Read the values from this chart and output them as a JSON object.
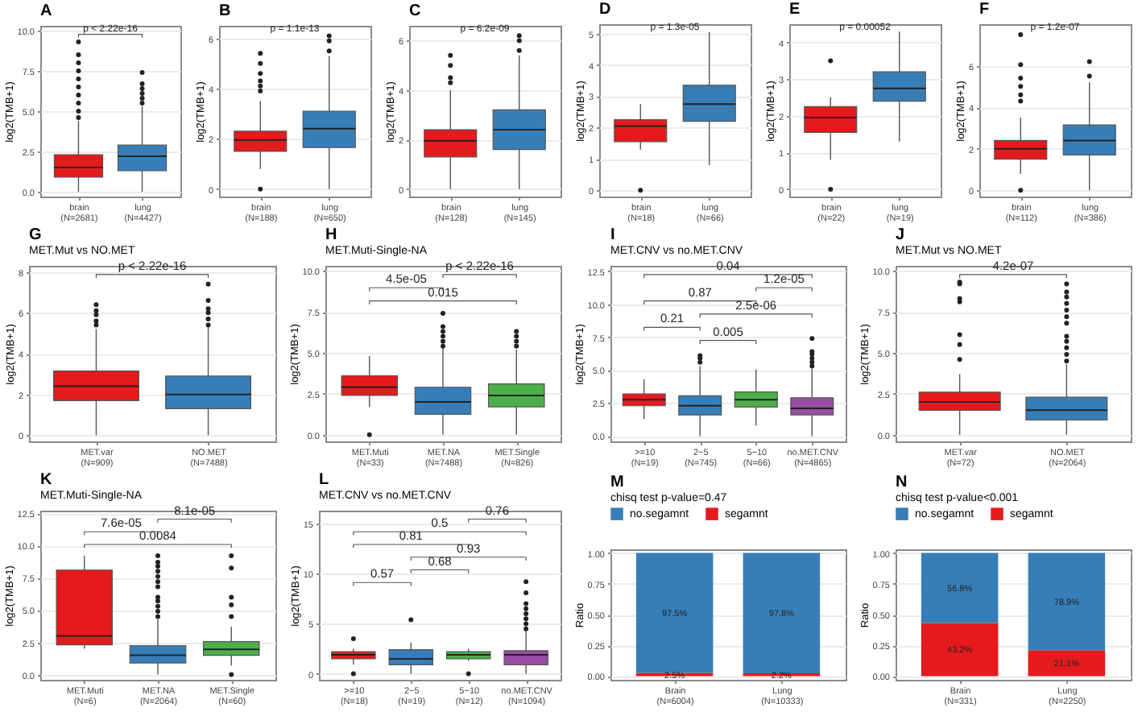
{
  "chart_data": [
    {
      "type": "box",
      "title": "A",
      "ylabel": "log2(TMB+1)",
      "categories": [
        "brain\n(N=2681)",
        "lung\n(N=4427)"
      ],
      "colors": [
        "#e41a1c",
        "#377eb8"
      ],
      "ylim": [
        -0.3,
        10.3
      ],
      "yticks": [
        {
          "value": 0,
          "label": "0.0"
        },
        2.5,
        {
          "value": 5,
          "label": "5.0"
        },
        7.5,
        {
          "value": 10,
          "label": "10.0"
        }
      ],
      "grid": true,
      "annotations": [
        "p < 2.22e-16"
      ],
      "boxes": [
        {
          "low": 0,
          "q1": 0.9,
          "median": 1.5,
          "q3": 2.3,
          "high": 4.4,
          "outliers": [
            4.6,
            5,
            5.5,
            6,
            6.5,
            7,
            7.5,
            8,
            8.5,
            9.3
          ]
        },
        {
          "low": 0,
          "q1": 1.3,
          "median": 2.2,
          "q3": 2.9,
          "high": 5.3,
          "outliers": [
            5.5,
            5.8,
            6.1,
            6.4,
            6.7,
            7.4
          ]
        }
      ]
    },
    {
      "type": "box",
      "title": "B",
      "ylabel": "log2(TMB+1)",
      "categories": [
        "brain\n(N=188)",
        "lung\n(N=650)"
      ],
      "colors": [
        "#e41a1c",
        "#377eb8"
      ],
      "ylim": [
        -0.3,
        6.5
      ],
      "yticks": [
        0,
        2,
        4,
        6
      ],
      "grid": true,
      "annotations": [
        "p = 1.1e-13"
      ],
      "boxes": [
        {
          "low": 0.8,
          "q1": 1.5,
          "median": 1.95,
          "q3": 2.3,
          "high": 3.5,
          "outliers": [
            0,
            3.9,
            4.1,
            4.3,
            4.6,
            5,
            5.4
          ]
        },
        {
          "low": 0,
          "q1": 1.65,
          "median": 2.4,
          "q3": 3.1,
          "high": 5.3,
          "outliers": [
            5.5,
            5.9,
            6.1
          ]
        }
      ]
    },
    {
      "type": "box",
      "title": "C",
      "ylabel": "log2(TMB+1)",
      "categories": [
        "brain\n(N=128)",
        "lung\n(N=145)"
      ],
      "colors": [
        "#e41a1c",
        "#377eb8"
      ],
      "ylim": [
        -0.3,
        6.6
      ],
      "yticks": [
        0,
        2,
        4,
        6
      ],
      "grid": true,
      "annotations": [
        "p = 6.2e-09"
      ],
      "boxes": [
        {
          "low": 0,
          "q1": 1.3,
          "median": 1.95,
          "q3": 2.4,
          "high": 4.0,
          "outliers": [
            4.3,
            4.5,
            5,
            5.4
          ]
        },
        {
          "low": 0,
          "q1": 1.6,
          "median": 2.4,
          "q3": 3.2,
          "high": 5.4,
          "outliers": [
            5.6,
            6,
            6.2
          ]
        }
      ]
    },
    {
      "type": "box",
      "title": "D",
      "ylabel": "log2(TMB+1)",
      "categories": [
        "brain\n(N=18)",
        "lung\n(N=66)"
      ],
      "colors": [
        "#e41a1c",
        "#377eb8"
      ],
      "ylim": [
        -0.2,
        5.3
      ],
      "yticks": [
        0,
        1,
        2,
        3,
        4,
        5
      ],
      "grid": true,
      "annotations": [
        "p = 1.3e-05"
      ],
      "boxes": [
        {
          "low": 1.3,
          "q1": 1.55,
          "median": 2.05,
          "q3": 2.25,
          "high": 2.75,
          "outliers": [
            0
          ]
        },
        {
          "low": 0.8,
          "q1": 2.2,
          "median": 2.75,
          "q3": 3.35,
          "high": 5.05
        }
      ]
    },
    {
      "type": "box",
      "title": "E",
      "ylabel": "log2(TMB+1)",
      "categories": [
        "brain\n(N=22)",
        "lung\n(N=19)"
      ],
      "colors": [
        "#e41a1c",
        "#377eb8"
      ],
      "ylim": [
        -0.2,
        4.5
      ],
      "yticks": [
        0,
        1,
        2,
        3,
        4
      ],
      "grid": true,
      "annotations": [
        "p = 0.00052"
      ],
      "boxes": [
        {
          "low": 0.8,
          "q1": 1.55,
          "median": 1.95,
          "q3": 2.25,
          "high": 2.5,
          "outliers": [
            0,
            3.5
          ]
        },
        {
          "low": 1.3,
          "q1": 2.4,
          "median": 2.75,
          "q3": 3.2,
          "high": 4.3
        }
      ]
    },
    {
      "type": "box",
      "title": "F",
      "ylabel": "log2(TMB+1)",
      "categories": [
        "brain\n(N=112)",
        "lung\n(N=386)"
      ],
      "colors": [
        "#e41a1c",
        "#377eb8"
      ],
      "ylim": [
        -0.3,
        8.0
      ],
      "yticks": [
        0,
        2,
        4,
        6
      ],
      "grid": true,
      "annotations": [
        "p = 1.2e-07"
      ],
      "boxes": [
        {
          "low": 0.8,
          "q1": 1.5,
          "median": 2.0,
          "q3": 2.4,
          "high": 3.5,
          "outliers": [
            0,
            4.3,
            4.6,
            5,
            5.4,
            6.05,
            7.5
          ]
        },
        {
          "low": 0,
          "q1": 1.7,
          "median": 2.4,
          "q3": 3.15,
          "high": 5.2,
          "outliers": [
            5.5,
            6.2
          ]
        }
      ]
    },
    {
      "type": "box",
      "title": "G",
      "subtitle": "MET.Mut vs NO.MET",
      "ylabel": "log2(TMB+1)",
      "categories": [
        "MET.var\n(N=909)",
        "NO.MET\n(N=7488)"
      ],
      "colors": [
        "#e41a1c",
        "#377eb8"
      ],
      "ylim": [
        -0.3,
        8.3
      ],
      "yticks": [
        0,
        2,
        4,
        6,
        8
      ],
      "grid": true,
      "annotations": [
        "p < 2.22e-16"
      ],
      "boxes": [
        {
          "low": 0,
          "q1": 1.7,
          "median": 2.4,
          "q3": 3.15,
          "high": 5.2,
          "outliers": [
            5.4,
            5.6,
            5.9,
            6.1,
            6.4
          ]
        },
        {
          "low": 0,
          "q1": 1.3,
          "median": 2.0,
          "q3": 2.9,
          "high": 5.3,
          "outliers": [
            5.4,
            5.7,
            6,
            6.2,
            6.6,
            7.4
          ]
        }
      ]
    },
    {
      "type": "box",
      "title": "H",
      "subtitle": "MET.Muti-Single-NA",
      "ylabel": "log2(TMB+1)",
      "categories": [
        "MET.Muti\n(N=33)",
        "MET.NA\n(N=7488)",
        "MET.Single\n(N=826)"
      ],
      "colors": [
        "#e41a1c",
        "#377eb8",
        "#4daf4a"
      ],
      "ylim": [
        -0.4,
        10.3
      ],
      "yticks": [
        {
          "value": 0,
          "label": "0.0"
        },
        2.5,
        {
          "value": 5,
          "label": "5.0"
        },
        7.5,
        {
          "value": 10,
          "label": "10.0"
        }
      ],
      "grid": true,
      "annotations": [
        "4.5e-05",
        "p < 2.22e-16",
        "0.015"
      ],
      "boxes": [
        {
          "low": 1.7,
          "q1": 2.4,
          "median": 2.9,
          "q3": 3.6,
          "high": 4.8,
          "outliers": [
            0
          ]
        },
        {
          "low": 0,
          "q1": 1.25,
          "median": 2.0,
          "q3": 2.9,
          "high": 5.3,
          "outliers": [
            5.4,
            5.7,
            6,
            6.3,
            6.6,
            7.4
          ]
        },
        {
          "low": 0,
          "q1": 1.7,
          "median": 2.4,
          "q3": 3.1,
          "high": 5.2,
          "outliers": [
            5.4,
            5.7,
            6,
            6.3
          ]
        }
      ]
    },
    {
      "type": "box",
      "title": "I",
      "subtitle": "MET.CNV vs no.MET.CNV",
      "ylabel": "log2(TMB+1)",
      "categories": [
        ">=10\n(N=19)",
        "2~5\n(N=745)",
        "5~10\n(N=66)",
        "no.MET.CNV\n(N=4865)"
      ],
      "colors": [
        "#e41a1c",
        "#377eb8",
        "#4daf4a",
        "#984ea3"
      ],
      "ylim": [
        -0.4,
        12.9
      ],
      "yticks": [
        {
          "value": 0,
          "label": "0.0"
        },
        2.5,
        {
          "value": 5,
          "label": "5.0"
        },
        7.5,
        {
          "value": 10,
          "label": "10.0"
        },
        12.5
      ],
      "grid": true,
      "annotations": [
        "0.04",
        "1.2e-05",
        "0.87",
        "2.5e-06",
        "0.21",
        "0.005"
      ],
      "boxes": [
        {
          "low": 1.3,
          "q1": 2.3,
          "median": 2.75,
          "q3": 3.2,
          "high": 4.3
        },
        {
          "low": 0,
          "q1": 1.6,
          "median": 2.3,
          "q3": 3.05,
          "high": 5.3,
          "outliers": [
            5.6,
            5.9,
            6.1
          ]
        },
        {
          "low": 0.8,
          "q1": 2.2,
          "median": 2.75,
          "q3": 3.35,
          "high": 5.05
        },
        {
          "low": 0,
          "q1": 1.6,
          "median": 2.1,
          "q3": 2.9,
          "high": 5.1,
          "outliers": [
            5.3,
            5.6,
            5.9,
            6.2,
            6.4,
            7.4
          ]
        }
      ]
    },
    {
      "type": "box",
      "title": "J",
      "subtitle": "MET.Mut vs NO.MET",
      "ylabel": "log2(TMB+1)",
      "categories": [
        "MET.var\n(N=72)",
        "NO.MET\n(N=2064)"
      ],
      "colors": [
        "#e41a1c",
        "#377eb8"
      ],
      "ylim": [
        -0.4,
        10.3
      ],
      "yticks": [
        {
          "value": 0,
          "label": "0.0"
        },
        2.5,
        {
          "value": 5,
          "label": "5.0"
        },
        7.5,
        {
          "value": 10,
          "label": "10.0"
        }
      ],
      "grid": true,
      "annotations": [
        "4.2e-07"
      ],
      "boxes": [
        {
          "low": 0,
          "q1": 1.5,
          "median": 2.0,
          "q3": 2.6,
          "high": 3.7,
          "outliers": [
            4.6,
            5.5,
            6.1,
            8.1,
            8.3,
            9.2,
            9.3
          ]
        },
        {
          "low": 0,
          "q1": 0.9,
          "median": 1.5,
          "q3": 2.3,
          "high": 4.3,
          "outliers": [
            4.5,
            4.9,
            5.3,
            5.7,
            6,
            6.8,
            7.2,
            7.6,
            8,
            8.4,
            8.7,
            9.2
          ]
        }
      ]
    },
    {
      "type": "box",
      "title": "K",
      "subtitle": "MET.Muti-Single-NA",
      "ylabel": "log2(TMB+1)",
      "categories": [
        "MET.Muti\n(N=6)",
        "MET.NA\n(N=2064)",
        "MET.Single\n(N=60)"
      ],
      "colors": [
        "#e41a1c",
        "#377eb8",
        "#4daf4a"
      ],
      "ylim": [
        -0.4,
        12.7
      ],
      "yticks": [
        {
          "value": 0,
          "label": "0.0"
        },
        2.5,
        {
          "value": 5,
          "label": "5.0"
        },
        7.5,
        {
          "value": 10,
          "label": "10.0"
        },
        12.5
      ],
      "grid": true,
      "annotations": [
        "8.1e-05",
        "7.6e-05",
        "0.0084"
      ],
      "boxes": [
        {
          "low": 2.0,
          "q1": 2.3,
          "median": 3.0,
          "q3": 8.1,
          "high": 9.2
        },
        {
          "low": 0,
          "q1": 0.9,
          "median": 1.5,
          "q3": 2.25,
          "high": 4.3,
          "outliers": [
            4.5,
            4.9,
            5.3,
            5.7,
            6,
            6.8,
            7.2,
            7.6,
            8,
            8.4,
            8.7,
            9.2
          ]
        },
        {
          "low": 0.7,
          "q1": 1.5,
          "median": 1.95,
          "q3": 2.55,
          "high": 3.7,
          "outliers": [
            0,
            4.5,
            5.4,
            6,
            8.25,
            9.2
          ]
        }
      ]
    },
    {
      "type": "box",
      "title": "L",
      "subtitle": "MET.CNV vs no.MET.CNV",
      "ylabel": "log2(TMB+1)",
      "categories": [
        ">=10\n(N=18)",
        "2~5\n(N=19)",
        "5~10\n(N=12)",
        "no.MET.CNV\n(N=1094)"
      ],
      "colors": [
        "#e41a1c",
        "#377eb8",
        "#4daf4a",
        "#984ea3"
      ],
      "ylim": [
        -0.6,
        16.3
      ],
      "yticks": [
        0,
        5,
        10,
        15
      ],
      "grid": true,
      "annotations": [
        "0.76",
        "0.5",
        "0.81",
        "0.93",
        "0.68",
        "0.57"
      ],
      "boxes": [
        {
          "low": 0.9,
          "q1": 1.5,
          "median": 1.9,
          "q3": 2.2,
          "high": 2.5,
          "outliers": [
            0,
            3.5
          ]
        },
        {
          "low": 0,
          "q1": 0.9,
          "median": 1.5,
          "q3": 2.4,
          "high": 3.1,
          "outliers": [
            5.4
          ]
        },
        {
          "low": 1.3,
          "q1": 1.5,
          "median": 1.9,
          "q3": 2.2,
          "high": 2.5,
          "outliers": [
            0
          ]
        },
        {
          "low": 0,
          "q1": 0.9,
          "median": 1.9,
          "q3": 2.3,
          "high": 4.3,
          "outliers": [
            4.5,
            5,
            5.5,
            6,
            6.5,
            7,
            8.1,
            9.2
          ]
        }
      ]
    },
    {
      "type": "bar",
      "stacked": true,
      "title": "M",
      "subtitle": "chisq test p-value=0.47",
      "ylabel": "Ratio",
      "legend": "top",
      "grid": true,
      "categories": [
        "Brain\n(N=6004)",
        "Lung\n(N=10333)"
      ],
      "ylim": [
        -0.03,
        1.03
      ],
      "yticks": [
        {
          "value": 0,
          "label": "0.00"
        },
        0.25,
        {
          "value": 0.5,
          "label": "0.50"
        },
        0.75,
        {
          "value": 1,
          "label": "1.00"
        }
      ],
      "series": [
        {
          "name": "segamnt",
          "color": "#e41a1c",
          "values": [
            0.025,
            0.022
          ],
          "value_labels": [
            "2.5%",
            "2.2%"
          ]
        },
        {
          "name": "no.segamnt",
          "color": "#377eb8",
          "values": [
            0.975,
            0.978
          ],
          "value_labels": [
            "97.5%",
            "97.8%"
          ]
        }
      ]
    },
    {
      "type": "bar",
      "stacked": true,
      "title": "N",
      "subtitle": "chisq test p-value<0.001",
      "ylabel": "Ratio",
      "legend": "top",
      "grid": true,
      "categories": [
        "Brain\n(N=331)",
        "Lung\n(N=2250)"
      ],
      "ylim": [
        -0.03,
        1.03
      ],
      "yticks": [
        {
          "value": 0,
          "label": "0.00"
        },
        0.25,
        {
          "value": 0.5,
          "label": "0.50"
        },
        0.75,
        {
          "value": 1,
          "label": "1.00"
        }
      ],
      "series": [
        {
          "name": "segamnt",
          "color": "#e41a1c",
          "values": [
            0.432,
            0.211
          ],
          "value_labels": [
            "43.2%",
            "21.1%"
          ]
        },
        {
          "name": "no.segamnt",
          "color": "#377eb8",
          "values": [
            0.568,
            0.789
          ],
          "value_labels": [
            "56.8%",
            "78.9%"
          ]
        }
      ]
    }
  ]
}
